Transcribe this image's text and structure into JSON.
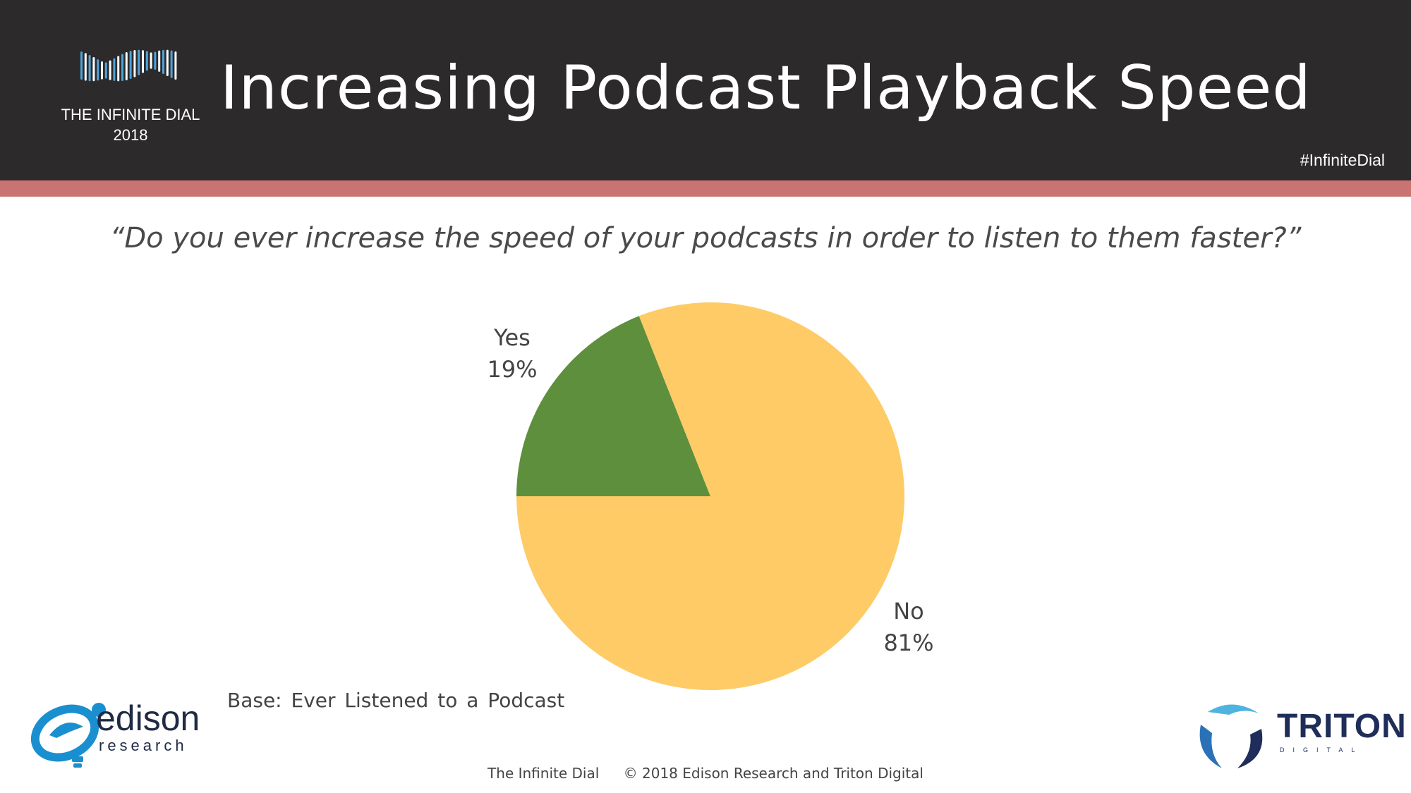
{
  "header": {
    "logo_line1": "THE INFINITE DIAL",
    "logo_line2": "2018",
    "title": "Increasing Podcast Playback Speed",
    "hashtag": "#InfiniteDial"
  },
  "question": "“Do you ever increase the speed of your podcasts in order to listen to them faster?”",
  "chart_data": {
    "type": "pie",
    "title": "",
    "slices": [
      {
        "label": "Yes",
        "value": 19,
        "display": "19%",
        "color": "#5e8f3d"
      },
      {
        "label": "No",
        "value": 81,
        "display": "81%",
        "color": "#fecb66"
      }
    ]
  },
  "base_note": "Base: Ever Listened to a Podcast",
  "footer": {
    "left": "The Infinite Dial",
    "right": "© 2018 Edison Research and Triton Digital"
  },
  "brands": {
    "edison_word": "edison",
    "edison_sub": "research",
    "triton_word": "TRITON",
    "triton_sub": "DIGITAL"
  },
  "colors": {
    "header_bg": "#2d2a2b",
    "stripe": "#c97473",
    "logo_blue": "#4fa3d8"
  }
}
